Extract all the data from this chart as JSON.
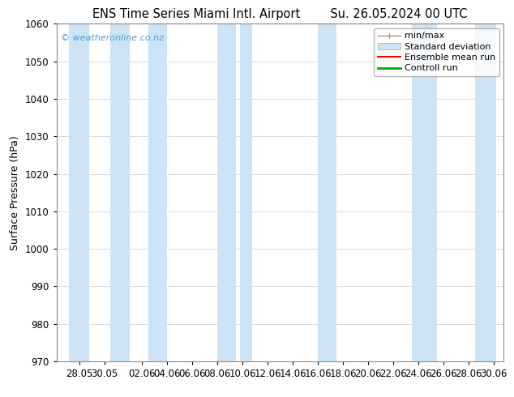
{
  "title_left": "ENS Time Series Miami Intl. Airport",
  "title_right": "Su. 26.05.2024 00 UTC",
  "ylabel": "Surface Pressure (hPa)",
  "ylim": [
    970,
    1060
  ],
  "yticks": [
    970,
    980,
    990,
    1000,
    1010,
    1020,
    1030,
    1040,
    1050,
    1060
  ],
  "background_color": "#ffffff",
  "plot_bg_color": "#ffffff",
  "watermark": "© weatheronline.co.nz",
  "watermark_color": "#5599cc",
  "x_labels": [
    "28.05",
    "30.05",
    "02.06",
    "04.06",
    "06.06",
    "08.06",
    "10.06",
    "12.06",
    "14.06",
    "16.06",
    "18.06",
    "20.06",
    "22.06",
    "24.06",
    "26.06",
    "28.06",
    "30.06"
  ],
  "shaded_band_color": "#cce4f5",
  "band_alpha": 1.0,
  "legend_items": [
    {
      "label": "min/max",
      "color": "#999999",
      "lw": 1.0
    },
    {
      "label": "Standard deviation",
      "color": "#cce4f5",
      "lw": 6
    },
    {
      "label": "Ensemble mean run",
      "color": "#ff0000",
      "lw": 1.5
    },
    {
      "label": "Controll run",
      "color": "#00aa00",
      "lw": 2
    }
  ],
  "tick_label_fontsize": 8.5,
  "axis_label_fontsize": 9,
  "title_fontsize": 10.5,
  "legend_fontsize": 8
}
